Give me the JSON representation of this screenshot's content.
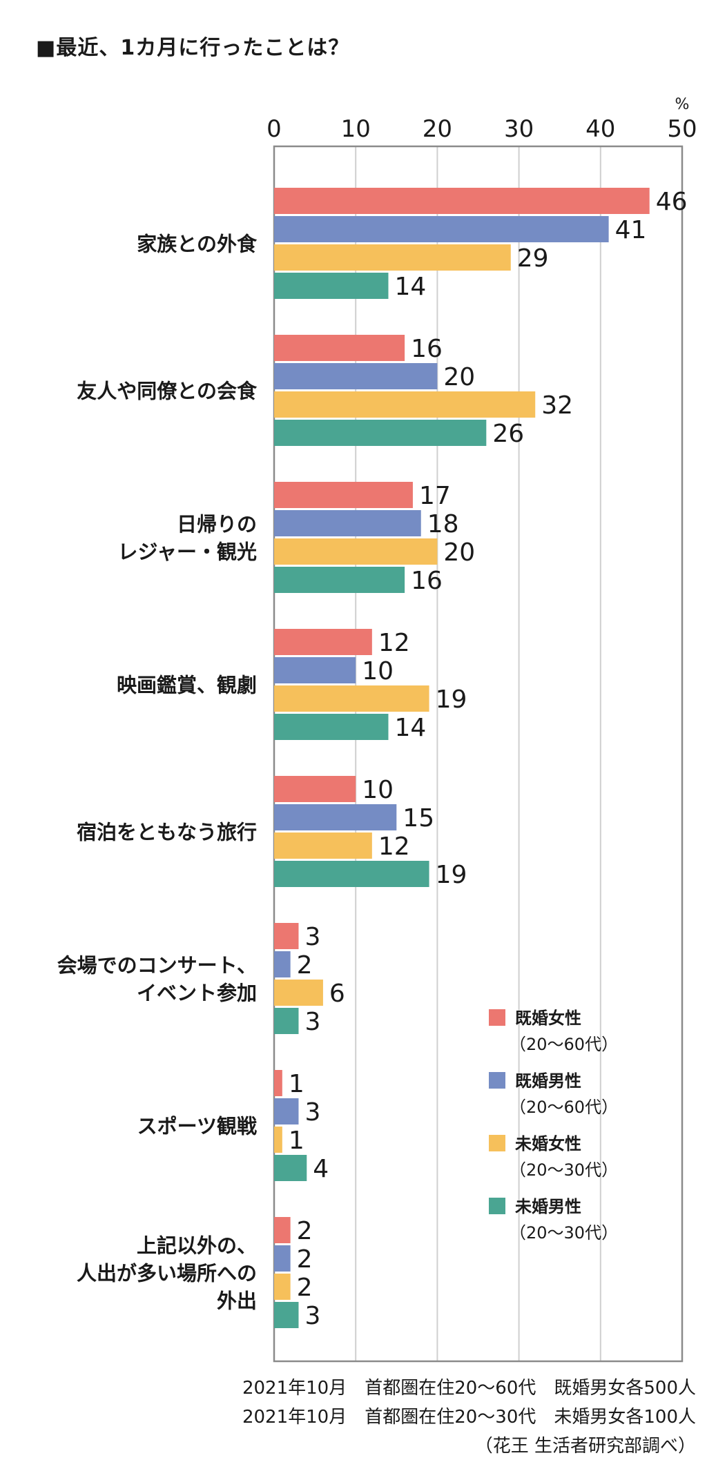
{
  "title": "■最近、1カ月に行ったことは？",
  "footnotes": [
    "2021年10月　首都圏在住20～60代　既婚男女各500人",
    "2021年10月　首都圏在住20～30代　未婚男女各100人",
    "（花王 生活者研究部調べ）"
  ],
  "chart_data": {
    "type": "bar",
    "orientation": "horizontal",
    "unit": "%",
    "xlim": [
      0,
      50
    ],
    "ticks": [
      0,
      10,
      20,
      30,
      40,
      50
    ],
    "grid": true,
    "legend_position": "bottom-right",
    "categories": [
      [
        "家族との外食"
      ],
      [
        "友人や同僚との会食"
      ],
      [
        "日帰りの",
        "レジャー・観光"
      ],
      [
        "映画鑑賞、観劇"
      ],
      [
        "宿泊をともなう旅行"
      ],
      [
        "会場でのコンサート、",
        "イベント参加"
      ],
      [
        "スポーツ観戦"
      ],
      [
        "上記以外の、",
        "人出が多い場所への",
        "外出"
      ]
    ],
    "series": [
      {
        "name": "既婚女性",
        "sub": "（20～60代）",
        "color": "#ec7770",
        "values": [
          46,
          16,
          17,
          12,
          10,
          3,
          1,
          2
        ]
      },
      {
        "name": "既婚男性",
        "sub": "（20～60代）",
        "color": "#758cc4",
        "values": [
          41,
          20,
          18,
          10,
          15,
          2,
          3,
          2
        ]
      },
      {
        "name": "未婚女性",
        "sub": "（20～30代）",
        "color": "#f6c05b",
        "values": [
          29,
          32,
          20,
          19,
          12,
          6,
          1,
          2
        ]
      },
      {
        "name": "未婚男性",
        "sub": "（20～30代）",
        "color": "#4aa592",
        "values": [
          14,
          26,
          16,
          14,
          19,
          3,
          4,
          3
        ]
      }
    ]
  }
}
